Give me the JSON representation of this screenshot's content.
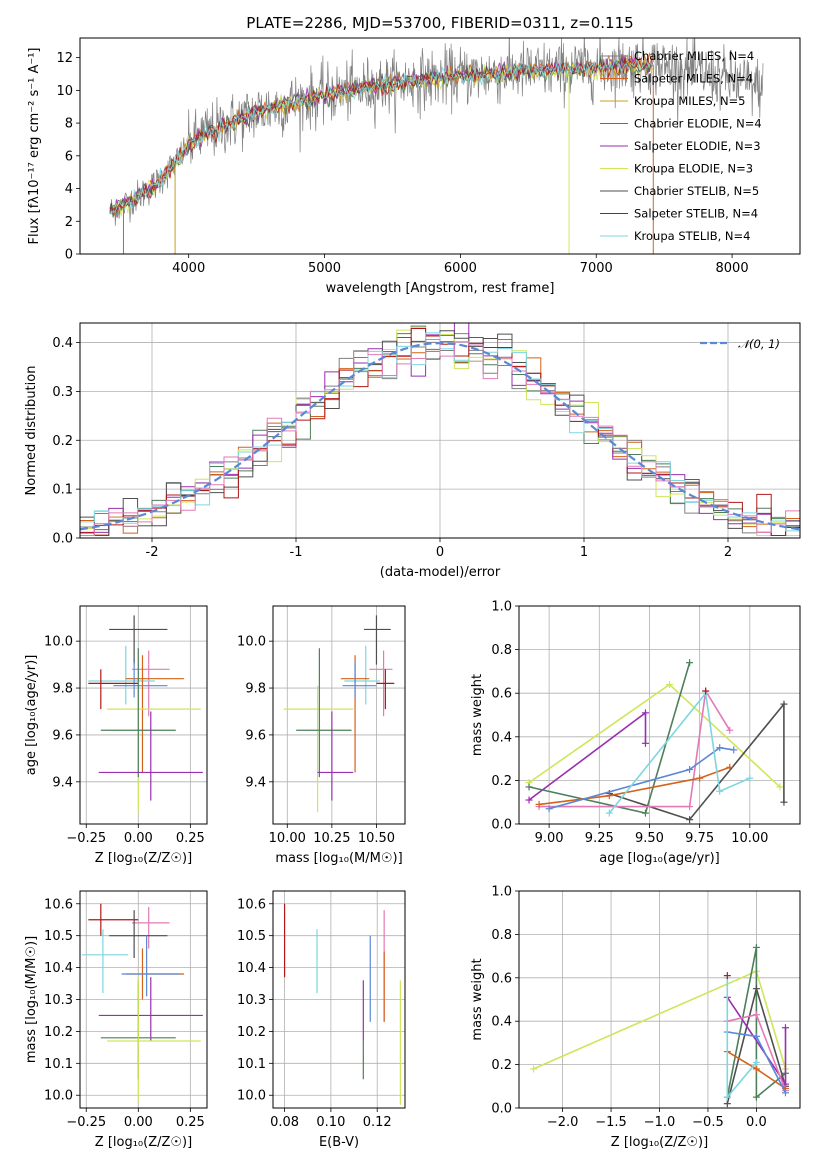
{
  "figure": {
    "title": "PLATE=2286, MJD=53700, FIBERID=0311, z=0.115"
  },
  "colors": {
    "gray": "#808080",
    "orange": "#d4621b",
    "gold": "#c8a020",
    "green": "#4c7f5a",
    "purple": "#9a2eb0",
    "lime": "#cfe65a",
    "dark": "#4f4f4f",
    "red": "#b01818",
    "cyan": "#7dd6e0",
    "blue": "#5b88d6",
    "pink": "#e27ab8",
    "olive": "#7a9a2a"
  },
  "chart_data": [
    {
      "id": "spectrum",
      "type": "line",
      "xlabel": "wavelength [Angstrom, rest frame]",
      "ylabel": "Flux [fλ10⁻¹⁷ erg cm⁻² s⁻¹ A⁻¹]",
      "xlim": [
        3200,
        8500
      ],
      "ylim": [
        0,
        13.2
      ],
      "xticks": [
        4000,
        5000,
        6000,
        7000,
        8000
      ],
      "yticks": [
        0,
        2,
        4,
        6,
        8,
        10,
        12
      ],
      "grid": false,
      "legend_position": "upper-right",
      "data_envelope": {
        "x": [
          3420,
          3500,
          3600,
          3700,
          3800,
          3900,
          4000,
          4100,
          4200,
          4300,
          4400,
          4500,
          4600,
          4800,
          5000,
          5200,
          5400,
          5600,
          5800,
          6000,
          6200,
          6400,
          6600,
          6800,
          7000,
          7200,
          7400,
          7600,
          7800,
          8000,
          8200
        ],
        "y": [
          2.6,
          2.9,
          3.4,
          3.9,
          4.6,
          5.6,
          6.6,
          7.3,
          7.6,
          8.0,
          8.3,
          8.7,
          8.9,
          9.3,
          9.7,
          10.0,
          10.3,
          10.5,
          10.7,
          10.9,
          11.0,
          11.1,
          11.2,
          11.3,
          11.4,
          11.5,
          11.6,
          11.3,
          11.0,
          10.6,
          10.2
        ]
      },
      "series": [
        {
          "name": "Chabrier MILES, N_SSP=4",
          "color": "#808080",
          "scale": 1.0
        },
        {
          "name": "Salpeter MILES, N_SSP=4",
          "color": "#d4621b",
          "scale": 1.01
        },
        {
          "name": "Kroupa MILES, N_SSP=5",
          "color": "#c8a020",
          "scale": 0.99
        },
        {
          "name": "Chabrier ELODIE, N_SSP=4",
          "color": "#4c7f5a",
          "scale": 1.0
        },
        {
          "name": "Salpeter ELODIE, N_SSP=3",
          "color": "#9a2eb0",
          "scale": 1.005
        },
        {
          "name": "Kroupa ELODIE, N_SSP=3",
          "color": "#cfe65a",
          "scale": 0.995
        },
        {
          "name": "Chabrier STELIB, N_SSP=5",
          "color": "#4f4f4f",
          "scale": 1.0
        },
        {
          "name": "Salpeter STELIB, N_SSP=4",
          "color": "#b01818",
          "scale": 1.0
        },
        {
          "name": "Kroupa STELIB, N_SSP=4",
          "color": "#7dd6e0",
          "scale": 1.0
        }
      ]
    },
    {
      "id": "residuals",
      "type": "histogram",
      "xlabel": "(data-model)/error",
      "ylabel": "Normed distribution",
      "xlim": [
        -2.5,
        2.5
      ],
      "ylim": [
        0,
        0.44
      ],
      "xticks": [
        -2,
        -1,
        0,
        1,
        2
      ],
      "yticks": [
        0.0,
        0.1,
        0.2,
        0.3,
        0.4
      ],
      "grid": true,
      "legend_position": "upper-right",
      "legend": [
        "𝒩(0, 1)"
      ],
      "bin_width": 0.1,
      "normal_color": "#5b88d6",
      "hist_colors": [
        "#808080",
        "#d4621b",
        "#4c7f5a",
        "#9a2eb0",
        "#cfe65a",
        "#4f4f4f",
        "#b01818",
        "#7dd6e0",
        "#e27ab8"
      ]
    },
    {
      "id": "age-vs-Z",
      "type": "scatter",
      "xlabel": "Z [log₁₀(Z/Z☉)]",
      "ylabel": "age  [log₁₀(age/yr)]",
      "xlim": [
        -0.28,
        0.33
      ],
      "ylim": [
        9.22,
        10.15
      ],
      "xticks": [
        -0.25,
        0.0,
        0.25
      ],
      "xticklabels": [
        "−0.25",
        "0.00",
        "0.25"
      ],
      "yticks": [
        9.4,
        9.6,
        9.8,
        10.0
      ],
      "grid": true,
      "points": [
        {
          "x": -0.02,
          "xerr": [
            0.12,
            0.16
          ],
          "y": 10.05,
          "yerr": [
            0.15,
            0.06
          ],
          "color": "#4f4f4f"
        },
        {
          "x": 0.05,
          "xerr": [
            0.08,
            0.1
          ],
          "y": 9.88,
          "yerr": [
            0.2,
            0.08
          ],
          "color": "#e27ab8"
        },
        {
          "x": -0.06,
          "xerr": [
            0.18,
            0.14
          ],
          "y": 9.83,
          "yerr": [
            0.1,
            0.15
          ],
          "color": "#7dd6e0"
        },
        {
          "x": 0.02,
          "xerr": [
            0.08,
            0.2
          ],
          "y": 9.84,
          "yerr": [
            0.4,
            0.1
          ],
          "color": "#d4621b"
        },
        {
          "x": -0.02,
          "xerr": [
            0.1,
            0.16
          ],
          "y": 9.81,
          "yerr": [
            0.05,
            0.1
          ],
          "color": "#5b88d6"
        },
        {
          "x": -0.18,
          "xerr": [
            0.06,
            0.18
          ],
          "y": 9.82,
          "yerr": [
            0.11,
            0.06
          ],
          "color": "#b01818"
        },
        {
          "x": 0.0,
          "xerr": [
            0.15,
            0.3
          ],
          "y": 9.71,
          "yerr": [
            0.44,
            0.1
          ],
          "color": "#cfe65a"
        },
        {
          "x": 0.0,
          "xerr": [
            0.18,
            0.18
          ],
          "y": 9.62,
          "yerr": [
            0.2,
            0.35
          ],
          "color": "#4c7f5a"
        },
        {
          "x": 0.06,
          "xerr": [
            0.25,
            0.25
          ],
          "y": 9.44,
          "yerr": [
            0.12,
            0.26
          ],
          "color": "#9a2eb0"
        }
      ]
    },
    {
      "id": "age-vs-mass",
      "type": "scatter",
      "xlabel": "mass [log₁₀(M/M☉)]",
      "ylabel": "",
      "xlim": [
        9.92,
        10.66
      ],
      "ylim": [
        9.22,
        10.15
      ],
      "xticks": [
        10.0,
        10.25,
        10.5
      ],
      "xticklabels": [
        "10.00",
        "10.25",
        "10.50"
      ],
      "yticks": [
        9.4,
        9.6,
        9.8,
        10.0
      ],
      "grid": true,
      "points": [
        {
          "x": 10.5,
          "xerr": [
            0.07,
            0.08
          ],
          "y": 10.05,
          "yerr": [
            0.15,
            0.06
          ],
          "color": "#4f4f4f"
        },
        {
          "x": 10.54,
          "xerr": [
            0.08,
            0.05
          ],
          "y": 9.88,
          "yerr": [
            0.2,
            0.08
          ],
          "color": "#e27ab8"
        },
        {
          "x": 10.44,
          "xerr": [
            0.12,
            0.08
          ],
          "y": 9.83,
          "yerr": [
            0.1,
            0.15
          ],
          "color": "#7dd6e0"
        },
        {
          "x": 10.38,
          "xerr": [
            0.08,
            0.08
          ],
          "y": 9.84,
          "yerr": [
            0.4,
            0.1
          ],
          "color": "#d4621b"
        },
        {
          "x": 10.38,
          "xerr": [
            0.07,
            0.12
          ],
          "y": 9.81,
          "yerr": [
            0.05,
            0.1
          ],
          "color": "#5b88d6"
        },
        {
          "x": 10.55,
          "xerr": [
            0.05,
            0.05
          ],
          "y": 9.82,
          "yerr": [
            0.11,
            0.06
          ],
          "color": "#b01818"
        },
        {
          "x": 10.17,
          "xerr": [
            0.19,
            0.2
          ],
          "y": 9.71,
          "yerr": [
            0.44,
            0.1
          ],
          "color": "#cfe65a"
        },
        {
          "x": 10.18,
          "xerr": [
            0.13,
            0.18
          ],
          "y": 9.62,
          "yerr": [
            0.2,
            0.35
          ],
          "color": "#4c7f5a"
        },
        {
          "x": 10.25,
          "xerr": [
            0.08,
            0.12
          ],
          "y": 9.44,
          "yerr": [
            0.12,
            0.26
          ],
          "color": "#9a2eb0"
        }
      ]
    },
    {
      "id": "massweight-vs-age",
      "type": "line",
      "xlabel": "age  [log₁₀(age/yr)]",
      "ylabel": "mass weight",
      "xlim": [
        8.85,
        10.25
      ],
      "ylim": [
        0.0,
        1.0
      ],
      "xticks": [
        9.0,
        9.25,
        9.5,
        9.75,
        10.0
      ],
      "xticklabels": [
        "9.00",
        "9.25",
        "9.50",
        "9.75",
        "10.00"
      ],
      "yticks": [
        0.0,
        0.2,
        0.4,
        0.6,
        0.8,
        1.0
      ],
      "grid": true,
      "series": [
        {
          "color": "#cfe65a",
          "x": [
            8.9,
            9.6,
            10.15
          ],
          "y": [
            0.19,
            0.64,
            0.17
          ]
        },
        {
          "color": "#9a2eb0",
          "x": [
            8.9,
            9.48,
            9.48
          ],
          "y": [
            0.11,
            0.51,
            0.37
          ]
        },
        {
          "color": "#4c7f5a",
          "x": [
            8.9,
            9.48,
            9.7
          ],
          "y": [
            0.17,
            0.05,
            0.74
          ]
        },
        {
          "color": "#4f4f4f",
          "x": [
            9.3,
            9.7,
            10.17,
            10.17
          ],
          "y": [
            0.14,
            0.02,
            0.55,
            0.1
          ]
        },
        {
          "color": "#e27ab8",
          "x": [
            8.95,
            9.7,
            9.78,
            9.9
          ],
          "y": [
            0.08,
            0.08,
            0.61,
            0.43
          ]
        },
        {
          "color": "#d4621b",
          "x": [
            8.95,
            9.3,
            9.75,
            9.9
          ],
          "y": [
            0.09,
            0.13,
            0.21,
            0.26
          ]
        },
        {
          "color": "#5b88d6",
          "x": [
            9.0,
            9.7,
            9.85,
            9.92
          ],
          "y": [
            0.07,
            0.25,
            0.35,
            0.34
          ]
        },
        {
          "color": "#7dd6e0",
          "x": [
            9.3,
            9.78,
            9.85,
            10.0
          ],
          "y": [
            0.05,
            0.6,
            0.15,
            0.21
          ]
        },
        {
          "color": "#b01818",
          "x": [
            9.78
          ],
          "y": [
            0.61
          ]
        }
      ]
    },
    {
      "id": "mass-vs-Z",
      "type": "scatter",
      "xlabel": "Z [log₁₀(Z/Z☉)]",
      "ylabel": "mass [log₁₀(M/M☉)]",
      "xlim": [
        -0.28,
        0.33
      ],
      "ylim": [
        9.96,
        10.64
      ],
      "xticks": [
        -0.25,
        0.0,
        0.25
      ],
      "xticklabels": [
        "−0.25",
        "0.00",
        "0.25"
      ],
      "yticks": [
        10.0,
        10.1,
        10.2,
        10.3,
        10.4,
        10.5,
        10.6
      ],
      "grid": true,
      "points": [
        {
          "x": -0.18,
          "xerr": [
            0.06,
            0.18
          ],
          "y": 10.55,
          "yerr": [
            0.05,
            0.05
          ],
          "color": "#b01818"
        },
        {
          "x": 0.05,
          "xerr": [
            0.08,
            0.1
          ],
          "y": 10.54,
          "yerr": [
            0.08,
            0.05
          ],
          "color": "#e27ab8"
        },
        {
          "x": -0.02,
          "xerr": [
            0.12,
            0.16
          ],
          "y": 10.5,
          "yerr": [
            0.07,
            0.08
          ],
          "color": "#4f4f4f"
        },
        {
          "x": -0.17,
          "xerr": [
            0.1,
            0.12
          ],
          "y": 10.44,
          "yerr": [
            0.12,
            0.08
          ],
          "color": "#7dd6e0"
        },
        {
          "x": 0.02,
          "xerr": [
            0.08,
            0.2
          ],
          "y": 10.38,
          "yerr": [
            0.08,
            0.08
          ],
          "color": "#d4621b"
        },
        {
          "x": 0.04,
          "xerr": [
            0.12,
            0.16
          ],
          "y": 10.38,
          "yerr": [
            0.07,
            0.12
          ],
          "color": "#5b88d6"
        },
        {
          "x": 0.06,
          "xerr": [
            0.25,
            0.25
          ],
          "y": 10.25,
          "yerr": [
            0.08,
            0.12
          ],
          "color": "#9a2eb0"
        },
        {
          "x": 0.0,
          "xerr": [
            0.18,
            0.18
          ],
          "y": 10.18,
          "yerr": [
            0.13,
            0.18
          ],
          "color": "#4c7f5a"
        },
        {
          "x": 0.0,
          "xerr": [
            0.15,
            0.3
          ],
          "y": 10.17,
          "yerr": [
            0.19,
            0.2
          ],
          "color": "#cfe65a"
        }
      ]
    },
    {
      "id": "mass-vs-ebv",
      "type": "scatter",
      "xlabel": "E(B-V)",
      "ylabel": "",
      "xlim": [
        0.075,
        0.132
      ],
      "ylim": [
        9.96,
        10.64
      ],
      "xticks": [
        0.08,
        0.1,
        0.12
      ],
      "xticklabels": [
        "0.08",
        "0.10",
        "0.12"
      ],
      "yticks": [
        10.0,
        10.1,
        10.2,
        10.3,
        10.4,
        10.5,
        10.6
      ],
      "grid": true,
      "points": [
        {
          "x": 0.08,
          "y": 10.5,
          "yerr": [
            0.13,
            0.1
          ],
          "color": "#b01818"
        },
        {
          "x": 0.094,
          "y": 10.42,
          "yerr": [
            0.1,
            0.1
          ],
          "color": "#7dd6e0"
        },
        {
          "x": 0.114,
          "y": 10.27,
          "yerr": [
            0.1,
            0.09
          ],
          "color": "#9a2eb0"
        },
        {
          "x": 0.114,
          "y": 10.17,
          "yerr": [
            0.12,
            0.0
          ],
          "color": "#4c7f5a"
        },
        {
          "x": 0.117,
          "y": 10.35,
          "yerr": [
            0.12,
            0.15
          ],
          "color": "#5b88d6"
        },
        {
          "x": 0.123,
          "y": 10.46,
          "yerr": [
            0.23,
            0.12
          ],
          "color": "#e27ab8"
        },
        {
          "x": 0.123,
          "y": 10.35,
          "yerr": [
            0.12,
            0.1
          ],
          "color": "#d4621b"
        },
        {
          "x": 0.13,
          "y": 10.17,
          "yerr": [
            0.2,
            0.19
          ],
          "color": "#cfe65a"
        }
      ]
    },
    {
      "id": "massweight-vs-Z",
      "type": "line",
      "xlabel": "Z [log₁₀(Z/Z☉)]",
      "ylabel": "mass weight",
      "xlim": [
        -2.45,
        0.45
      ],
      "ylim": [
        0.0,
        1.0
      ],
      "xticks": [
        -2.0,
        -1.5,
        -1.0,
        -0.5,
        0.0
      ],
      "xticklabels": [
        "−2.0",
        "−1.5",
        "−1.0",
        "−0.5",
        "0.0"
      ],
      "yticks": [
        0.0,
        0.2,
        0.4,
        0.6,
        0.8,
        1.0
      ],
      "grid": true,
      "series": [
        {
          "color": "#cfe65a",
          "x": [
            -2.3,
            0.0,
            0.3
          ],
          "y": [
            0.18,
            0.63,
            0.18
          ]
        },
        {
          "color": "#4c7f5a",
          "x": [
            -0.3,
            0.0,
            0.0,
            0.3
          ],
          "y": [
            0.05,
            0.74,
            0.05,
            0.16
          ]
        },
        {
          "color": "#4f4f4f",
          "x": [
            -0.3,
            0.0,
            0.3
          ],
          "y": [
            0.02,
            0.55,
            0.1
          ]
        },
        {
          "color": "#9a2eb0",
          "x": [
            -0.3,
            0.3,
            0.3
          ],
          "y": [
            0.51,
            0.11,
            0.37
          ]
        },
        {
          "color": "#e27ab8",
          "x": [
            -0.3,
            0.0,
            0.3
          ],
          "y": [
            0.4,
            0.43,
            0.08
          ]
        },
        {
          "color": "#d4621b",
          "x": [
            -0.3,
            0.0,
            0.3
          ],
          "y": [
            0.26,
            0.18,
            0.09
          ]
        },
        {
          "color": "#5b88d6",
          "x": [
            -0.3,
            0.0,
            0.3
          ],
          "y": [
            0.35,
            0.33,
            0.07
          ]
        },
        {
          "color": "#7dd6e0",
          "x": [
            -0.3,
            -0.3,
            0.0
          ],
          "y": [
            0.6,
            0.05,
            0.21
          ]
        },
        {
          "color": "#b01818",
          "x": [
            -0.3
          ],
          "y": [
            0.61
          ]
        }
      ]
    }
  ]
}
